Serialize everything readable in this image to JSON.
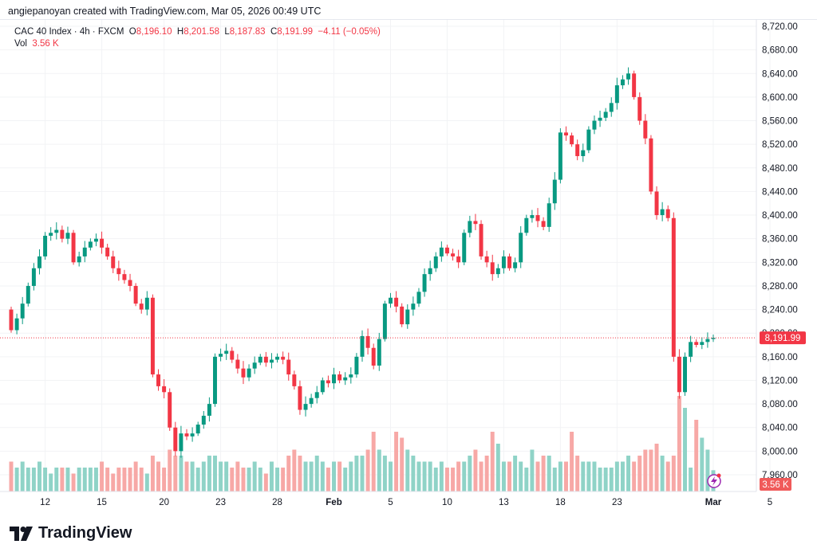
{
  "credit": "angiepanoyan created with TradingView.com, Mar 05, 2026 00:49 UTC",
  "legend": {
    "symbol": "CAC 40 Index · 4h · FXCM",
    "o_label": "O",
    "o": "8,196.10",
    "h_label": "H",
    "h": "8,201.58",
    "l_label": "L",
    "l": "8,187.83",
    "c_label": "C",
    "c": "8,191.99",
    "change": "−4.11 (−0.05%)",
    "vol_label": "Vol",
    "vol": "3.56 K"
  },
  "logo": "TradingView",
  "colors": {
    "up": "#089981",
    "down": "#f23645",
    "vol_up": "#8fd3c7",
    "vol_down": "#f7a8a6"
  },
  "chart_data": {
    "type": "candlestick",
    "ylim": [
      7940,
      8735
    ],
    "y_ticks": [
      "8,720.00",
      "8,680.00",
      "8,640.00",
      "8,600.00",
      "8,560.00",
      "8,520.00",
      "8,480.00",
      "8,440.00",
      "8,400.00",
      "8,360.00",
      "8,320.00",
      "8,280.00",
      "8,240.00",
      "8,200.00",
      "8,160.00",
      "8,120.00",
      "8,080.00",
      "8,040.00",
      "8,000.00",
      "7,960.00"
    ],
    "y_tick_values": [
      8720,
      8680,
      8640,
      8600,
      8560,
      8520,
      8480,
      8440,
      8400,
      8360,
      8320,
      8280,
      8240,
      8200,
      8160,
      8120,
      8080,
      8040,
      8000,
      7960
    ],
    "x_ticks": [
      {
        "label": "12",
        "i": 6
      },
      {
        "label": "15",
        "i": 16
      },
      {
        "label": "20",
        "i": 27
      },
      {
        "label": "23",
        "i": 37
      },
      {
        "label": "28",
        "i": 47
      },
      {
        "label": "Feb",
        "i": 57,
        "bold": true
      },
      {
        "label": "5",
        "i": 67
      },
      {
        "label": "10",
        "i": 77
      },
      {
        "label": "13",
        "i": 87
      },
      {
        "label": "18",
        "i": 97
      },
      {
        "label": "23",
        "i": 107
      },
      {
        "label": "Mar",
        "i": 124,
        "bold": true
      },
      {
        "label": "5",
        "i": 134
      }
    ],
    "first_open": 8240,
    "closes": [
      8205,
      8225,
      8250,
      8280,
      8310,
      8330,
      8365,
      8370,
      8375,
      8360,
      8370,
      8320,
      8330,
      8345,
      8355,
      8360,
      8345,
      8330,
      8310,
      8300,
      8290,
      8280,
      8250,
      8240,
      8260,
      8130,
      8110,
      8100,
      8040,
      8000,
      8030,
      8025,
      8030,
      8045,
      8060,
      8080,
      8160,
      8165,
      8170,
      8155,
      8140,
      8125,
      8140,
      8150,
      8160,
      8150,
      8155,
      8160,
      8155,
      8130,
      8110,
      8070,
      8080,
      8090,
      8100,
      8120,
      8115,
      8130,
      8120,
      8125,
      8130,
      8160,
      8195,
      8175,
      8145,
      8190,
      8250,
      8260,
      8245,
      8215,
      8240,
      8250,
      8270,
      8300,
      8310,
      8330,
      8345,
      8335,
      8330,
      8320,
      8370,
      8390,
      8385,
      8330,
      8320,
      8300,
      8310,
      8330,
      8310,
      8320,
      8370,
      8395,
      8400,
      8390,
      8380,
      8420,
      8460,
      8540,
      8535,
      8520,
      8500,
      8510,
      8545,
      8560,
      8565,
      8575,
      8590,
      8620,
      8630,
      8640,
      8600,
      8560,
      8530,
      8440,
      8400,
      8410,
      8395,
      8160,
      8100,
      8160,
      8185,
      8180,
      8185,
      8190,
      8192
    ],
    "volumes_k": [
      5,
      4,
      5,
      4,
      4,
      5,
      4,
      3,
      4,
      4,
      4,
      3,
      4,
      4,
      4,
      4,
      5,
      4,
      3,
      4,
      4,
      4,
      5,
      4,
      3,
      6,
      5,
      4,
      7,
      6,
      6,
      5,
      5,
      4,
      5,
      6,
      6,
      5,
      5,
      4,
      5,
      4,
      4,
      5,
      4,
      3,
      5,
      4,
      4,
      6,
      7,
      6,
      5,
      5,
      6,
      5,
      4,
      5,
      5,
      4,
      5,
      6,
      6,
      7,
      10,
      7,
      6,
      5,
      10,
      9,
      7,
      6,
      5,
      5,
      5,
      4,
      5,
      4,
      4,
      5,
      5,
      6,
      7,
      5,
      6,
      10,
      8,
      5,
      5,
      6,
      5,
      4,
      7,
      5,
      6,
      6,
      4,
      5,
      5,
      10,
      6,
      5,
      5,
      5,
      4,
      4,
      4,
      5,
      5,
      6,
      5,
      6,
      7,
      7,
      8,
      6,
      5,
      6,
      16,
      14,
      4,
      12,
      9,
      7,
      3.56
    ]
  }
}
